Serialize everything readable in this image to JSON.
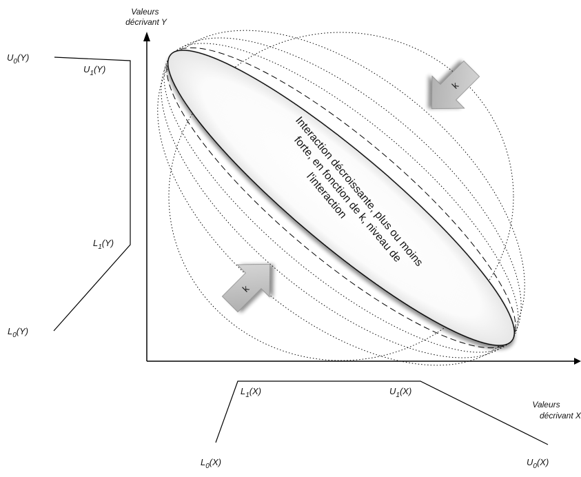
{
  "axes": {
    "y_title": [
      "Valeurs",
      "décrivant Y"
    ],
    "x_title": [
      "Valeurs",
      "décrivant X"
    ]
  },
  "y_membership": {
    "u0": {
      "base": "U",
      "sub": "0",
      "arg": "(Y)"
    },
    "u1": {
      "base": "U",
      "sub": "1",
      "arg": "(Y)"
    },
    "l1": {
      "base": "L",
      "sub": "1",
      "arg": "(Y)"
    },
    "l0": {
      "base": "L",
      "sub": "0",
      "arg": "(Y)"
    }
  },
  "x_membership": {
    "l1": {
      "base": "L",
      "sub": "1",
      "arg": "(X)"
    },
    "u1": {
      "base": "U",
      "sub": "1",
      "arg": "(X)"
    },
    "l0": {
      "base": "L",
      "sub": "0",
      "arg": "(X)"
    },
    "u0": {
      "base": "U",
      "sub": "0",
      "arg": "(X)"
    }
  },
  "ellipse_text": [
    "Interaction décroissante, plus ou moins",
    "forte, en fonction de k, niveau de",
    "l'interaction"
  ],
  "arrows": {
    "top_label": "k",
    "bottom_label": "k"
  }
}
